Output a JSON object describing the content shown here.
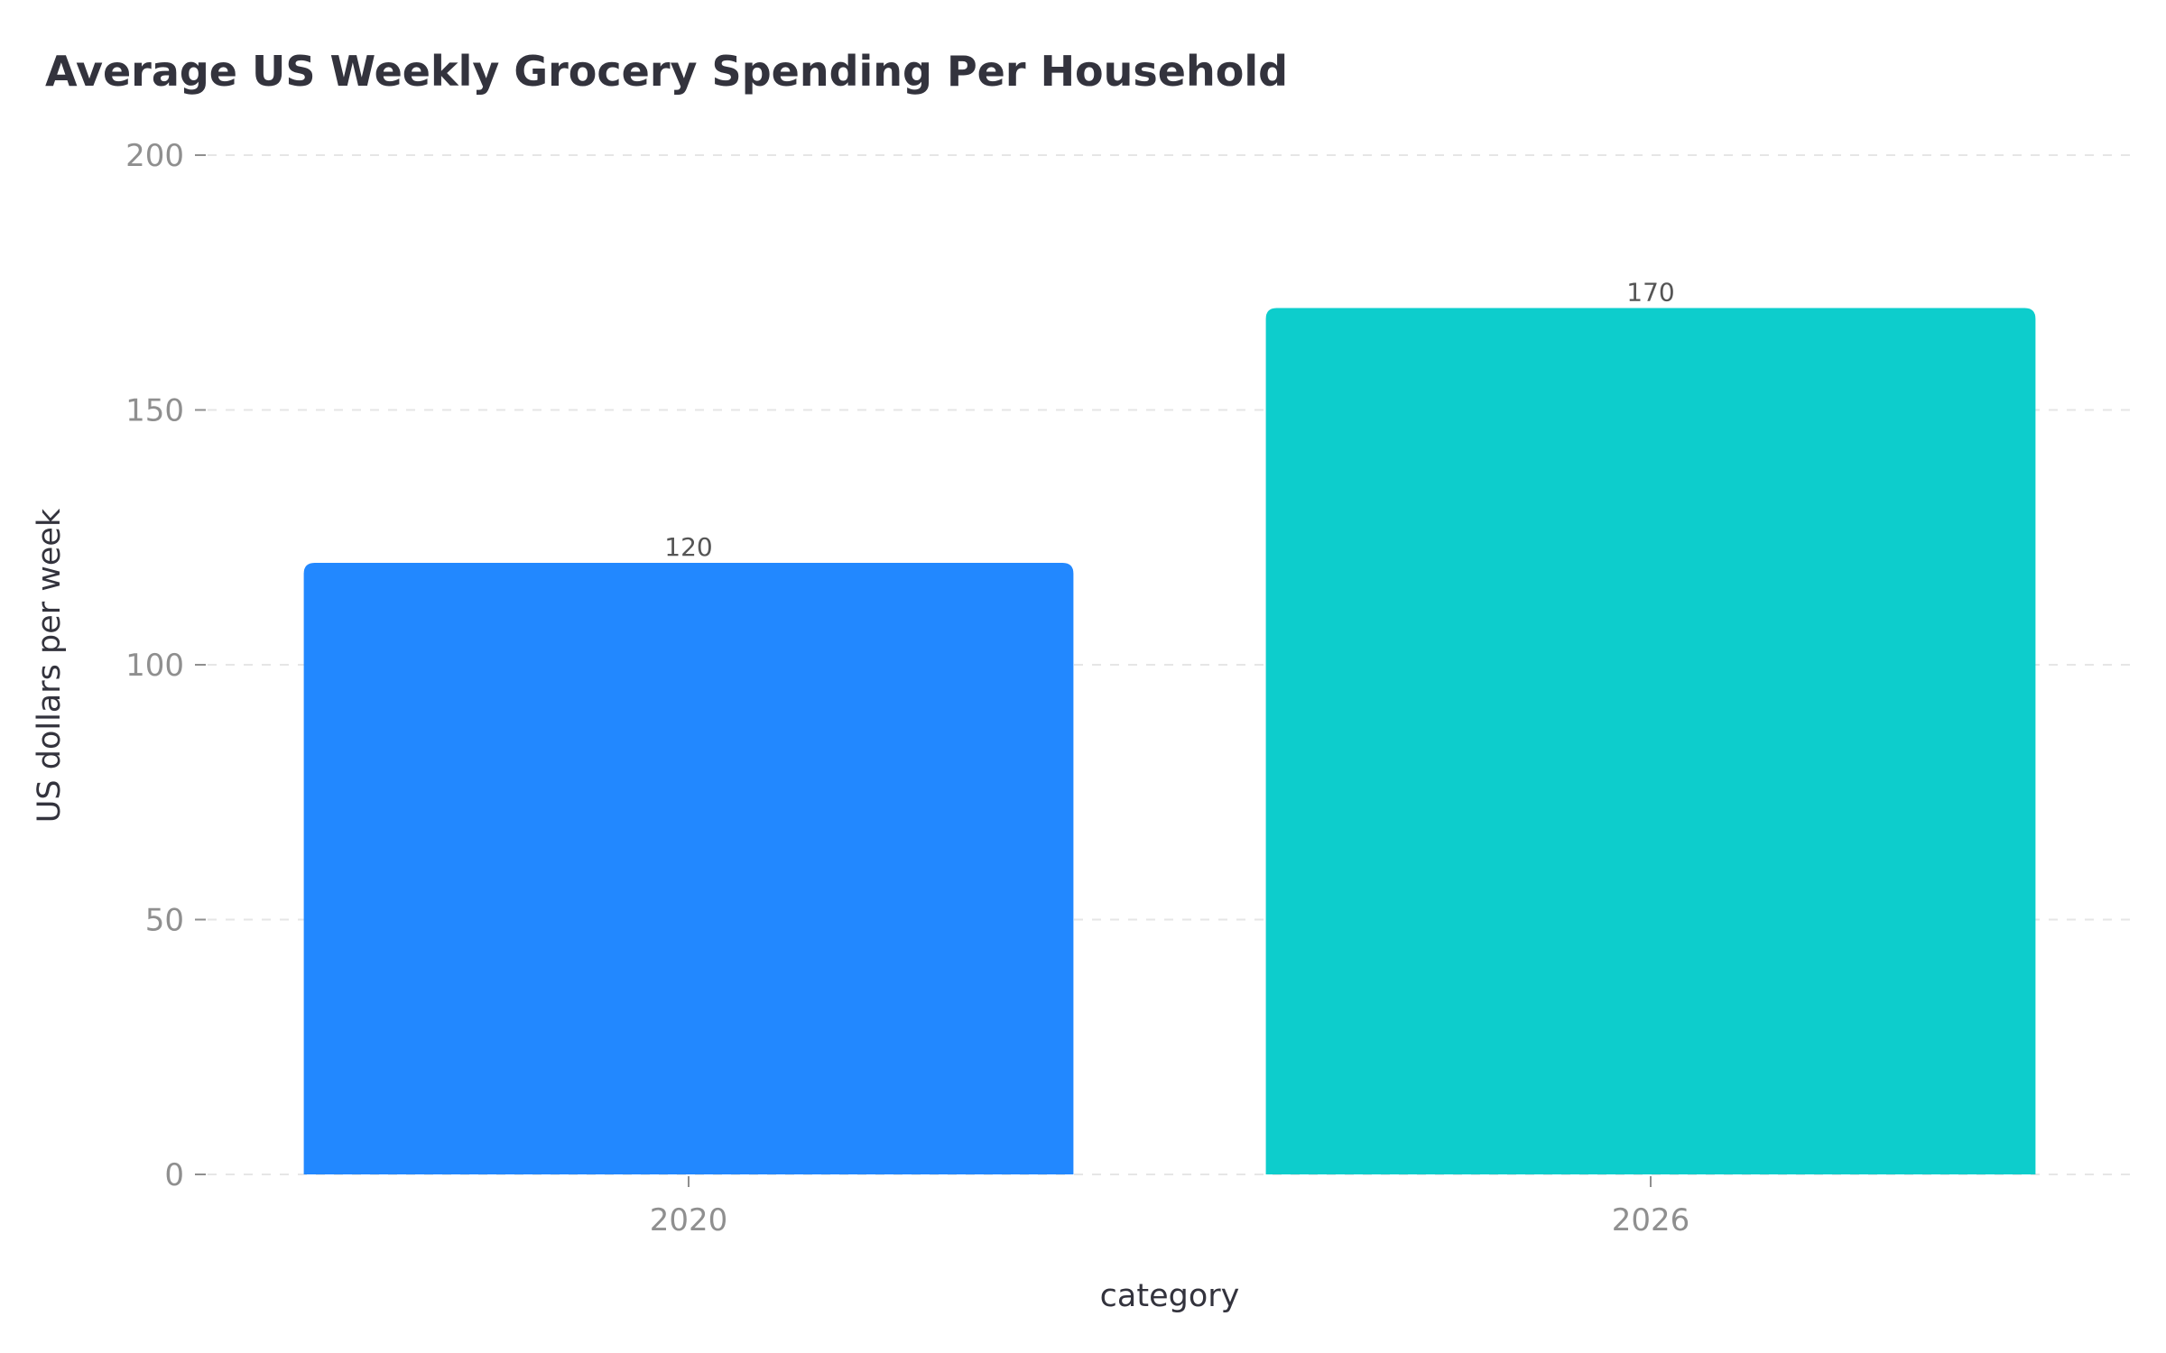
{
  "chart_data": {
    "type": "bar",
    "title": "Average US Weekly Grocery Spending Per Household",
    "xlabel": "category",
    "ylabel": "US dollars per week",
    "categories": [
      "2020",
      "2026"
    ],
    "values": [
      120,
      170
    ],
    "data_labels": [
      "120",
      "170"
    ],
    "colors": [
      "#2288ff",
      "#0dcdcc"
    ],
    "ylim": [
      0,
      200
    ],
    "yticks": [
      0,
      50,
      100,
      150,
      200
    ],
    "ytick_labels": [
      "0",
      "50",
      "100",
      "150",
      "200"
    ],
    "grid": true,
    "legend": "none"
  }
}
